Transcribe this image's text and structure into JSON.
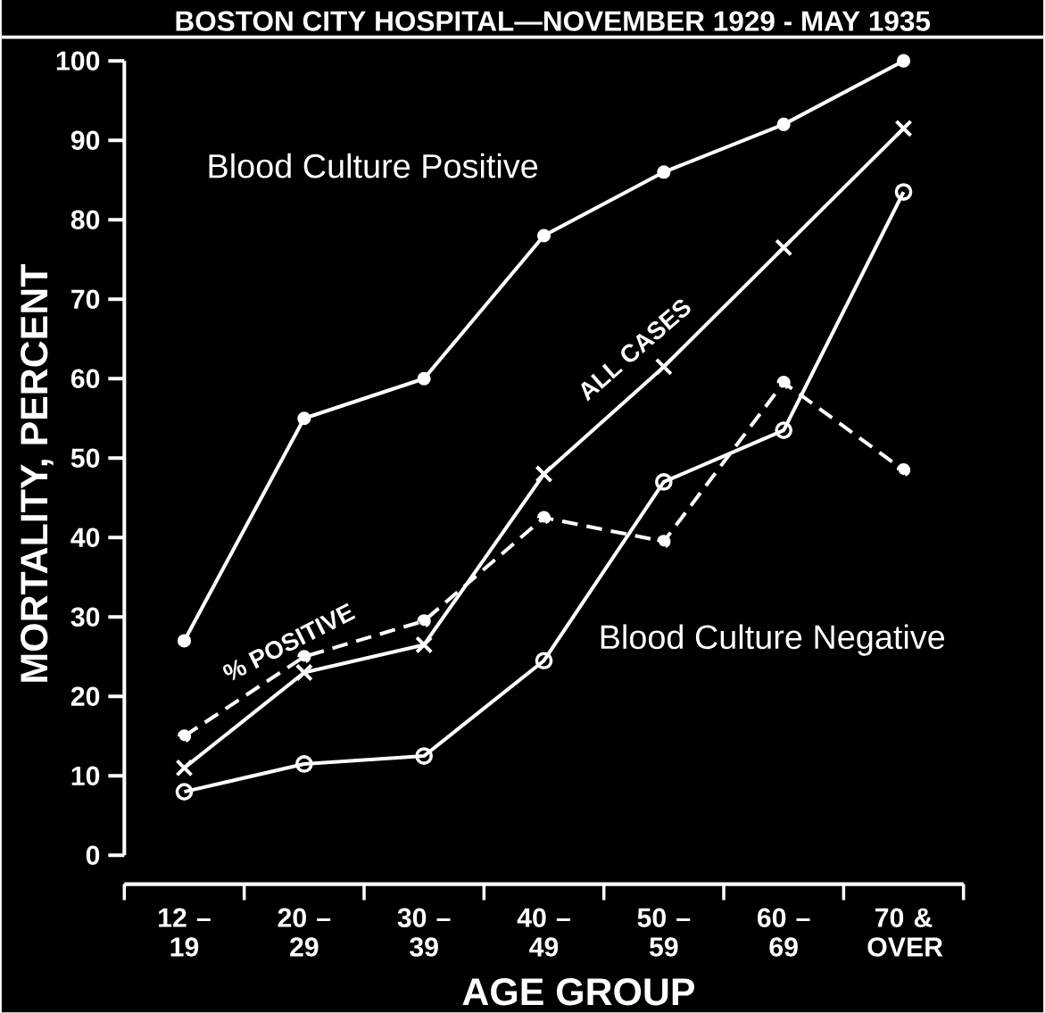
{
  "chart_data": {
    "type": "line",
    "title": "BOSTON CITY HOSPITAL—NOVEMBER 1929 - MAY 1935",
    "xlabel": "AGE GROUP",
    "ylabel": "MORTALITY, PERCENT",
    "categories": [
      "12 – 19",
      "20 – 29",
      "30 – 39",
      "40 – 49",
      "50 – 59",
      "60 – 69",
      "70 & OVER"
    ],
    "series": [
      {
        "name": "Blood Culture Positive",
        "color": "#ffffff",
        "marker": "circle",
        "line_style": "solid",
        "values": [
          27,
          55,
          60,
          78,
          86,
          92,
          100
        ]
      },
      {
        "name": "ALL CASES",
        "color": "#ffffff",
        "marker": "cross",
        "line_style": "solid",
        "values": [
          11,
          23,
          26.5,
          48,
          61.5,
          76.5,
          91.5
        ]
      },
      {
        "name": "Blood Culture Negative",
        "color": "#ffffff",
        "marker": "open circle",
        "line_style": "solid",
        "values": [
          8,
          11.5,
          12.5,
          24.5,
          47,
          53.5,
          83.5
        ]
      },
      {
        "name": "% POSITIVE",
        "color": "#ffffff",
        "marker": "circle",
        "line_style": "dashed",
        "values": [
          15,
          25,
          29.5,
          42.5,
          39.5,
          59.5,
          48.5
        ]
      }
    ],
    "ylim": [
      0,
      100
    ],
    "yticks": [
      0,
      10,
      20,
      30,
      40,
      50,
      60,
      70,
      80,
      90,
      100
    ],
    "grid": false,
    "legend": false
  }
}
